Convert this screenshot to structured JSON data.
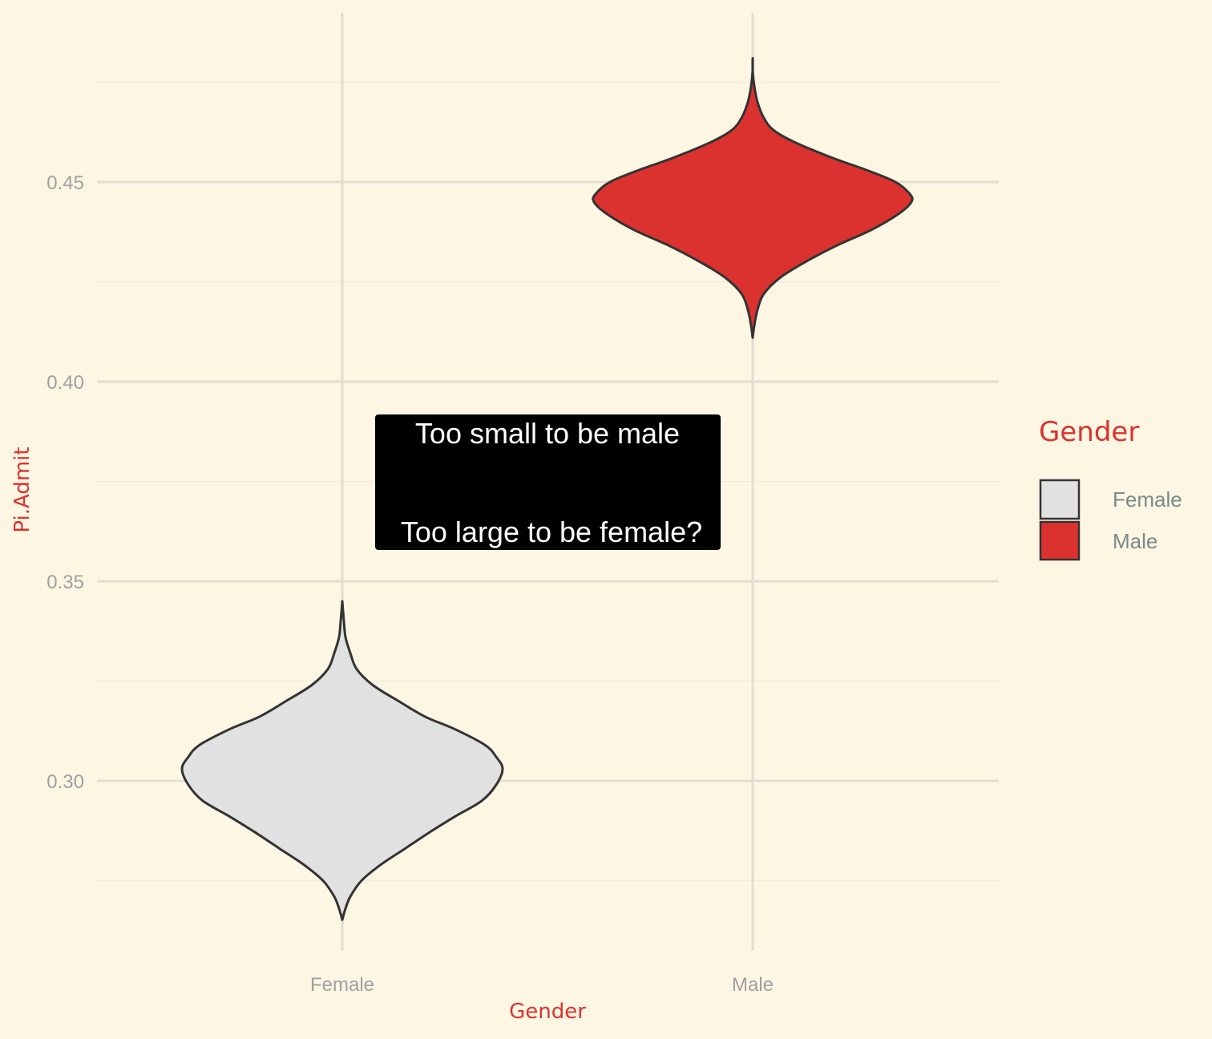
{
  "colors": {
    "background": "#fdf6e3",
    "grid_major": "#e2ddd2",
    "grid_minor": "#f0ebdd",
    "accent_title": "#dc322f",
    "tick_text": "#a0a0a0",
    "legend_text": "#7a8a8c",
    "violin_outline": "#333333",
    "annotation_bg": "#000000",
    "annotation_text": "#ffffff"
  },
  "chart_data": {
    "type": "violin",
    "title": "",
    "xlabel": "Gender",
    "ylabel": "Pi.Admit",
    "categories": [
      "Female",
      "Male"
    ],
    "ylim": [
      0.259,
      0.5
    ],
    "yticks": [
      0.3,
      0.35,
      0.4,
      0.45
    ],
    "ytick_labels": [
      "0.30",
      "0.35",
      "0.40",
      "0.45"
    ],
    "grid": true,
    "legend": {
      "title": "Gender",
      "position": "right",
      "entries": [
        {
          "label": "Female",
          "color": "#e1e1e1"
        },
        {
          "label": "Male",
          "color": "#dc322f"
        }
      ]
    },
    "series": [
      {
        "category": "Female",
        "fill": "#e1e1e1",
        "density": [
          {
            "y": 0.2652,
            "w": 0.0
          },
          {
            "y": 0.268,
            "w": 0.02
          },
          {
            "y": 0.271,
            "w": 0.05
          },
          {
            "y": 0.275,
            "w": 0.12
          },
          {
            "y": 0.279,
            "w": 0.24
          },
          {
            "y": 0.283,
            "w": 0.39
          },
          {
            "y": 0.287,
            "w": 0.54
          },
          {
            "y": 0.291,
            "w": 0.7
          },
          {
            "y": 0.295,
            "w": 0.87
          },
          {
            "y": 0.299,
            "w": 0.96
          },
          {
            "y": 0.303,
            "w": 1.0
          },
          {
            "y": 0.306,
            "w": 0.96
          },
          {
            "y": 0.309,
            "w": 0.89
          },
          {
            "y": 0.313,
            "w": 0.7
          },
          {
            "y": 0.316,
            "w": 0.52
          },
          {
            "y": 0.32,
            "w": 0.35
          },
          {
            "y": 0.324,
            "w": 0.19
          },
          {
            "y": 0.328,
            "w": 0.09
          },
          {
            "y": 0.332,
            "w": 0.05
          },
          {
            "y": 0.336,
            "w": 0.02
          },
          {
            "y": 0.34,
            "w": 0.01
          },
          {
            "y": 0.345,
            "w": 0.0
          }
        ]
      },
      {
        "category": "Male",
        "fill": "#dc322f",
        "density": [
          {
            "y": 0.411,
            "w": 0.0
          },
          {
            "y": 0.414,
            "w": 0.01
          },
          {
            "y": 0.418,
            "w": 0.03
          },
          {
            "y": 0.422,
            "w": 0.07
          },
          {
            "y": 0.426,
            "w": 0.17
          },
          {
            "y": 0.43,
            "w": 0.33
          },
          {
            "y": 0.434,
            "w": 0.52
          },
          {
            "y": 0.438,
            "w": 0.74
          },
          {
            "y": 0.442,
            "w": 0.91
          },
          {
            "y": 0.445,
            "w": 0.99
          },
          {
            "y": 0.447,
            "w": 0.98
          },
          {
            "y": 0.45,
            "w": 0.89
          },
          {
            "y": 0.453,
            "w": 0.71
          },
          {
            "y": 0.456,
            "w": 0.5
          },
          {
            "y": 0.46,
            "w": 0.26
          },
          {
            "y": 0.463,
            "w": 0.13
          },
          {
            "y": 0.466,
            "w": 0.07
          },
          {
            "y": 0.47,
            "w": 0.03
          },
          {
            "y": 0.474,
            "w": 0.01
          },
          {
            "y": 0.478,
            "w": 0.0
          },
          {
            "y": 0.481,
            "w": 0.0
          }
        ]
      }
    ],
    "annotation": {
      "lines": [
        "Too small to be male",
        "",
        "Too large to be female?"
      ]
    }
  }
}
